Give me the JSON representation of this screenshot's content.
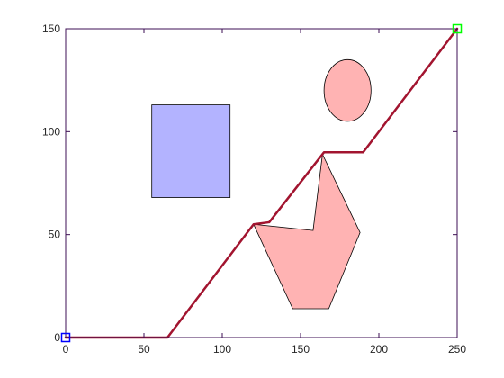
{
  "chart_data": {
    "type": "line",
    "title": "",
    "xlabel": "",
    "ylabel": "",
    "xlim": [
      0,
      250
    ],
    "ylim": [
      0,
      150
    ],
    "grid": false,
    "x_ticks": [
      0,
      50,
      100,
      150,
      200,
      250
    ],
    "y_ticks": [
      0,
      50,
      100,
      150
    ],
    "x_tick_labels": [
      "0",
      "50",
      "100",
      "150",
      "200",
      "250"
    ],
    "y_tick_labels": [
      "0",
      "50",
      "100",
      "150"
    ],
    "series": [
      {
        "type": "path",
        "color": "#a2142f",
        "points": [
          [
            0,
            0
          ],
          [
            65,
            0
          ],
          [
            120,
            55
          ],
          [
            130,
            56
          ],
          [
            165,
            90
          ],
          [
            190,
            90
          ],
          [
            250,
            150
          ]
        ]
      }
    ],
    "obstacles": [
      {
        "shape": "rectangle",
        "fill": "#b3b3ff",
        "stroke": "#000000",
        "x": [
          55,
          105
        ],
        "y": [
          68,
          113
        ]
      },
      {
        "shape": "ellipse",
        "fill": "#ffb3b3",
        "stroke": "#000000",
        "center": [
          180,
          120
        ],
        "radii": [
          15,
          15
        ]
      },
      {
        "shape": "polygon",
        "fill": "#ffb3b3",
        "stroke": "#000000",
        "points": [
          [
            120,
            55
          ],
          [
            158,
            52
          ],
          [
            164,
            89
          ],
          [
            188,
            51
          ],
          [
            168,
            14
          ],
          [
            145,
            14
          ]
        ]
      }
    ],
    "markers": [
      {
        "name": "start",
        "point": [
          0,
          0
        ],
        "color": "#0000ff",
        "shape": "square"
      },
      {
        "name": "goal",
        "point": [
          250,
          150
        ],
        "color": "#00ff00",
        "shape": "square"
      }
    ],
    "axes_color": "#3d0f54",
    "tick_label_color": "#262626"
  }
}
